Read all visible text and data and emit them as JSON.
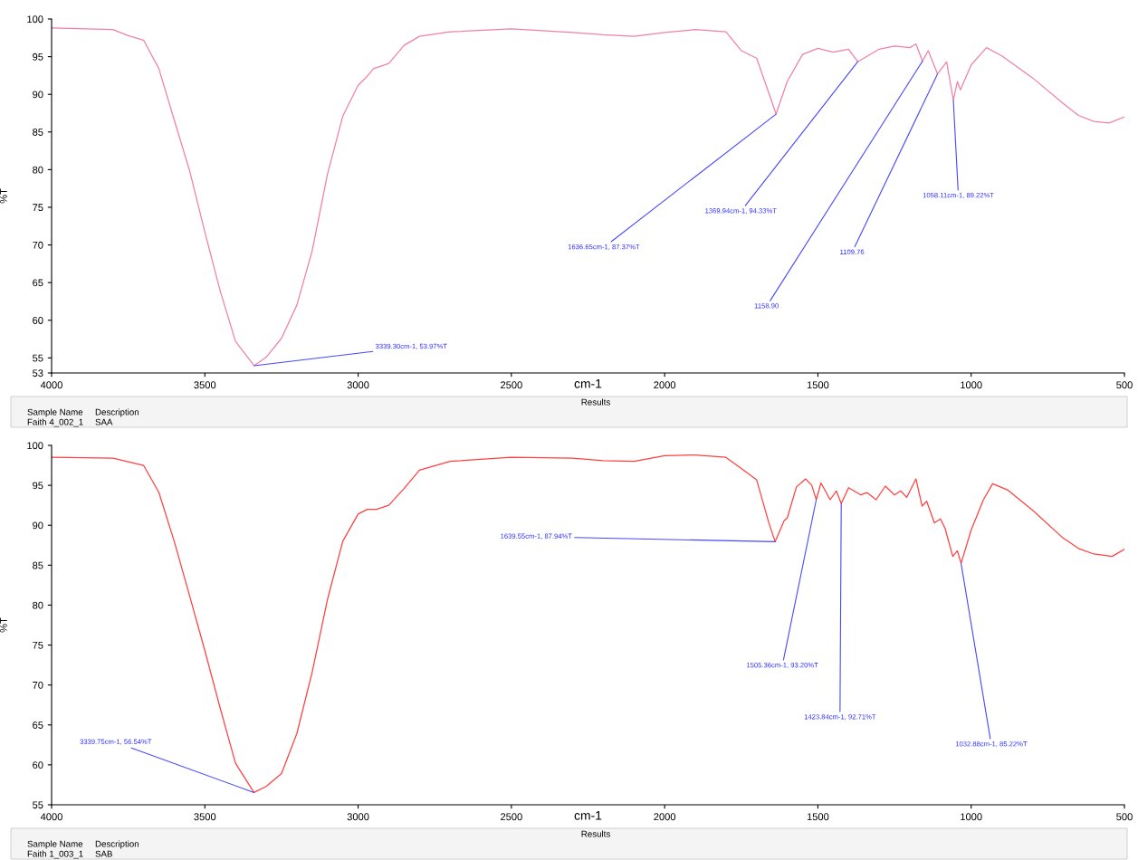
{
  "chart_data": [
    {
      "type": "line",
      "xlabel": "cm-1",
      "ylabel": "%T",
      "xlim": [
        4000,
        500
      ],
      "xticks": [
        4000,
        3500,
        3000,
        2500,
        2000,
        1500,
        1000,
        500
      ],
      "ylim": [
        53,
        100
      ],
      "yticks": [
        53,
        55,
        60,
        65,
        70,
        75,
        80,
        85,
        90,
        95,
        100
      ],
      "grid": false,
      "legend": false,
      "series": [
        {
          "color": "#f080a8",
          "x": [
            4000,
            3800,
            3750,
            3700,
            3650,
            3600,
            3550,
            3500,
            3450,
            3400,
            3339.3,
            3300,
            3250,
            3200,
            3150,
            3100,
            3050,
            3000,
            2970,
            2950,
            2900,
            2850,
            2800,
            2700,
            2500,
            2300,
            2200,
            2100,
            2000,
            1900,
            1800,
            1750,
            1700,
            1650,
            1636.65,
            1600,
            1550,
            1500,
            1450,
            1400,
            1369.94,
            1300,
            1250,
            1200,
            1180,
            1158.9,
            1140,
            1109.76,
            1080,
            1058.11,
            1045,
            1035,
            1000,
            950,
            900,
            800,
            700,
            650,
            600,
            550,
            500
          ],
          "values": [
            98.8,
            98.6,
            97.8,
            97.2,
            93.4,
            86.6,
            79.9,
            71.7,
            63.9,
            57.2,
            53.97,
            55.1,
            57.6,
            62.0,
            69.2,
            79.4,
            87.1,
            91.2,
            92.4,
            93.4,
            94.1,
            96.5,
            97.7,
            98.3,
            98.7,
            98.2,
            97.9,
            97.7,
            98.2,
            98.6,
            98.3,
            95.8,
            94.8,
            89.0,
            87.37,
            91.7,
            95.3,
            96.1,
            95.6,
            96.0,
            94.33,
            96.0,
            96.4,
            96.2,
            96.7,
            94.4,
            95.8,
            92.7,
            94.3,
            89.22,
            91.7,
            90.6,
            93.9,
            96.2,
            95.1,
            92.2,
            88.8,
            87.2,
            86.4,
            86.2,
            87.0
          ]
        }
      ],
      "annotations": [
        {
          "text": "3339.30cm-1, 53.97%T",
          "x": 3339.3,
          "y": 53.97
        },
        {
          "text": "1636.65cm-1, 87.37%T",
          "x": 1636.65,
          "y": 87.37
        },
        {
          "text": "1369.94cm-1, 94.33%T",
          "x": 1369.94,
          "y": 94.33
        },
        {
          "text": "1158.90",
          "x": 1158.9,
          "y": 94.4
        },
        {
          "text": "1109.76",
          "x": 1109.76,
          "y": 92.7
        },
        {
          "text": "1058.11cm-1, 89.22%T",
          "x": 1058.11,
          "y": 89.22
        },
        "Results",
        "Sample Name",
        "Description",
        "Faith 4_002_1",
        "SAA"
      ]
    },
    {
      "type": "line",
      "xlabel": "cm-1",
      "ylabel": "%T",
      "xlim": [
        4000,
        500
      ],
      "xticks": [
        4000,
        3500,
        3000,
        2500,
        2000,
        1500,
        1000,
        500
      ],
      "ylim": [
        55,
        100
      ],
      "yticks": [
        55,
        60,
        65,
        70,
        75,
        80,
        85,
        90,
        95,
        100
      ],
      "grid": false,
      "legend": false,
      "series": [
        {
          "color": "#ff4040",
          "x": [
            4000,
            3800,
            3700,
            3650,
            3600,
            3550,
            3500,
            3450,
            3400,
            3339.75,
            3300,
            3250,
            3200,
            3150,
            3100,
            3050,
            3000,
            2970,
            2940,
            2900,
            2850,
            2800,
            2700,
            2500,
            2300,
            2200,
            2100,
            2000,
            1900,
            1800,
            1750,
            1700,
            1660,
            1639.55,
            1610,
            1600,
            1570,
            1540,
            1520,
            1505.36,
            1490,
            1460,
            1440,
            1423.84,
            1400,
            1360,
            1340,
            1310,
            1280,
            1250,
            1230,
            1210,
            1180,
            1160,
            1145,
            1120,
            1100,
            1085,
            1060,
            1045,
            1032.88,
            1000,
            960,
            930,
            880,
            800,
            700,
            650,
            600,
            540,
            500
          ],
          "values": [
            98.5,
            98.4,
            97.5,
            94.1,
            88.0,
            81.2,
            74.3,
            67.1,
            60.2,
            56.54,
            57.3,
            58.9,
            63.9,
            71.6,
            80.7,
            88.0,
            91.4,
            92.0,
            92.0,
            92.5,
            94.6,
            96.9,
            98.0,
            98.5,
            98.4,
            98.1,
            98.0,
            98.7,
            98.8,
            98.5,
            97.1,
            95.7,
            90.3,
            87.94,
            90.6,
            90.9,
            94.8,
            95.8,
            95.0,
            93.2,
            95.3,
            93.2,
            94.3,
            92.71,
            94.7,
            93.8,
            94.1,
            93.2,
            94.9,
            93.8,
            94.3,
            93.5,
            95.8,
            92.4,
            93.0,
            90.3,
            90.8,
            89.6,
            86.1,
            86.8,
            85.22,
            89.4,
            93.2,
            95.2,
            94.4,
            91.9,
            88.4,
            87.1,
            86.4,
            86.1,
            87.0
          ]
        }
      ],
      "annotations": [
        {
          "text": "3339.75cm-1, 56.54%T",
          "x": 3339.75,
          "y": 56.54
        },
        {
          "text": "1639.55cm-1, 87.94%T",
          "x": 1639.55,
          "y": 87.94
        },
        {
          "text": "1505.36cm-1, 93.20%T",
          "x": 1505.36,
          "y": 93.2
        },
        {
          "text": "1423.84cm-1, 92.71%T",
          "x": 1423.84,
          "y": 92.71
        },
        {
          "text": "1032.88cm-1, 85.22%T",
          "x": 1032.88,
          "y": 85.22
        },
        "Results",
        "Sample Name",
        "Description",
        "Faith 1_003_1",
        "SAB"
      ]
    }
  ]
}
